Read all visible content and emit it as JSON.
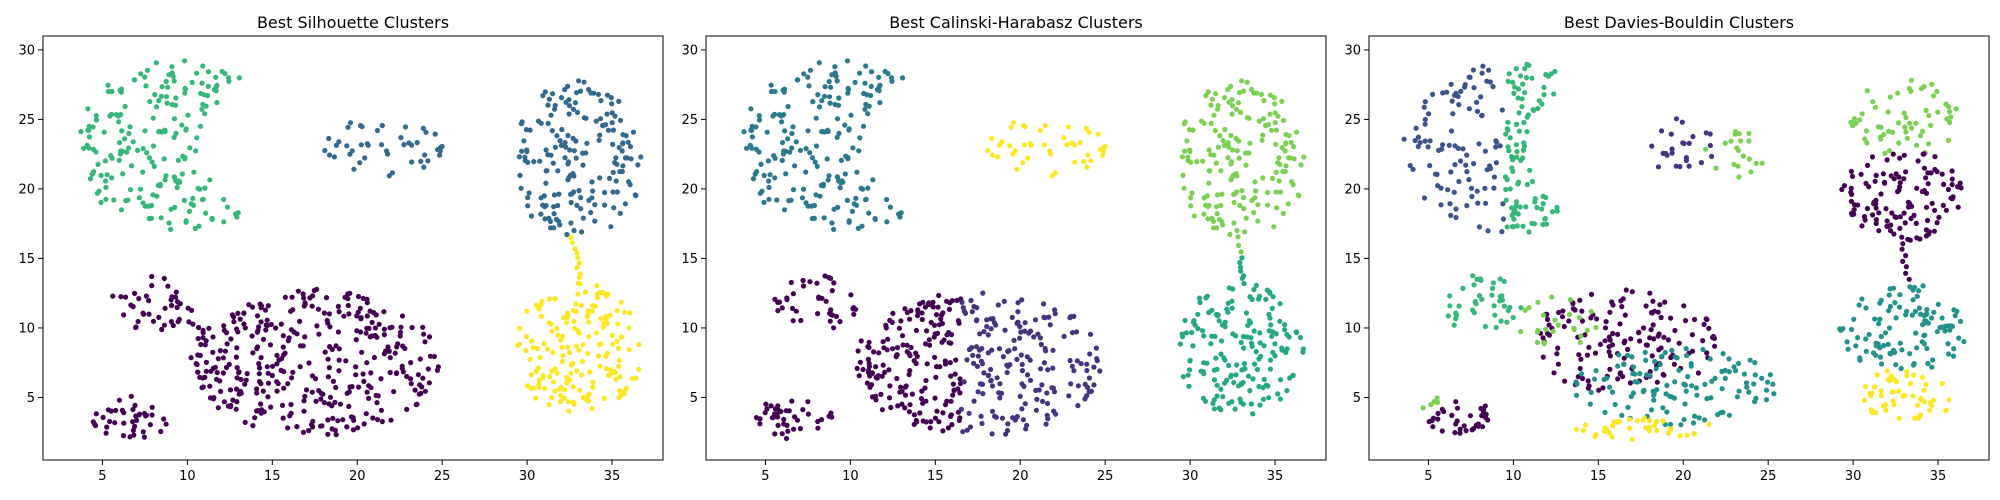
{
  "palette": {
    "c0": "#440154",
    "c1": "#3b528b",
    "c2": "#21918c",
    "c3": "#5ec962",
    "c4": "#fde725",
    "c_silh_blue": "#31688e",
    "c_silh_green": "#35b779",
    "c_ch_blue": "#46327e",
    "c_ch_teal": "#2a788e",
    "c_ch_green": "#22a884",
    "c_ch_lime": "#7ad151"
  },
  "chart_data": [
    {
      "type": "scatter",
      "title": "Best Silhouette Clusters",
      "xlim": [
        1.5,
        38.0
      ],
      "ylim": [
        0.5,
        31.0
      ],
      "xticks": [
        5,
        10,
        15,
        20,
        25,
        30,
        35
      ],
      "yticks": [
        5,
        10,
        15,
        20,
        25,
        30
      ],
      "grid": false,
      "clusters": [
        {
          "color": "#35b779",
          "shape": "crescent",
          "cx": 9.5,
          "cy": 23.0,
          "rx": 6.0,
          "ry": 6.3,
          "bite_cx": 17.0,
          "bite_cy": 23.0,
          "bite_r": 6.0,
          "n": 200
        },
        {
          "color": "#31688e",
          "shape": "ellipse",
          "cx": 21.5,
          "cy": 23.0,
          "rx": 3.5,
          "ry": 2.1,
          "n": 45
        },
        {
          "color": "#31688e",
          "shape": "ellipse",
          "cx": 33.0,
          "cy": 22.0,
          "rx": 3.8,
          "ry": 5.8,
          "n": 180
        },
        {
          "color": "#fde725",
          "shape": "ellipse",
          "cx": 33.0,
          "cy": 8.5,
          "rx": 3.8,
          "ry": 4.8,
          "n": 170
        },
        {
          "color": "#fde725",
          "shape": "bridge",
          "x1": 32.7,
          "y1": 16.5,
          "x2": 33.2,
          "y2": 13.2,
          "n": 10
        },
        {
          "color": "#440154",
          "shape": "ellipse",
          "cx": 17.5,
          "cy": 7.5,
          "rx": 7.3,
          "ry": 5.3,
          "n": 360
        },
        {
          "color": "#440154",
          "shape": "ellipse",
          "cx": 8.0,
          "cy": 11.8,
          "rx": 2.5,
          "ry": 2.0,
          "n": 40
        },
        {
          "color": "#440154",
          "shape": "ellipse",
          "cx": 6.7,
          "cy": 3.6,
          "rx": 2.3,
          "ry": 1.6,
          "n": 40
        },
        {
          "color": "#440154",
          "shape": "bridge",
          "x1": 10.0,
          "y1": 10.5,
          "x2": 11.0,
          "y2": 9.8,
          "n": 4
        }
      ]
    },
    {
      "type": "scatter",
      "title": "Best Calinski-Harabasz Clusters",
      "xlim": [
        1.5,
        38.0
      ],
      "ylim": [
        0.5,
        31.0
      ],
      "xticks": [
        5,
        10,
        15,
        20,
        25,
        30,
        35
      ],
      "yticks": [
        5,
        10,
        15,
        20,
        25,
        30
      ],
      "grid": false,
      "clusters": [
        {
          "color": "#2a788e",
          "shape": "crescent",
          "cx": 9.5,
          "cy": 23.0,
          "rx": 6.0,
          "ry": 6.3,
          "bite_cx": 17.0,
          "bite_cy": 23.0,
          "bite_r": 6.0,
          "n": 200
        },
        {
          "color": "#fde725",
          "shape": "ellipse",
          "cx": 21.5,
          "cy": 23.0,
          "rx": 3.5,
          "ry": 2.1,
          "n": 45
        },
        {
          "color": "#7ad151",
          "shape": "ellipse",
          "cx": 33.0,
          "cy": 22.0,
          "rx": 3.8,
          "ry": 5.8,
          "n": 180
        },
        {
          "color": "#7ad151",
          "shape": "bridge",
          "x1": 32.8,
          "y1": 16.5,
          "x2": 33.0,
          "y2": 15.5,
          "n": 3
        },
        {
          "color": "#22a884",
          "shape": "ellipse",
          "cx": 33.0,
          "cy": 8.5,
          "rx": 3.8,
          "ry": 4.8,
          "n": 170
        },
        {
          "color": "#22a884",
          "shape": "bridge",
          "x1": 33.0,
          "y1": 15.0,
          "x2": 33.2,
          "y2": 13.2,
          "n": 7
        },
        {
          "color": "#440154",
          "shape": "halfellipse",
          "cx": 17.5,
          "cy": 7.5,
          "rx": 7.3,
          "ry": 5.3,
          "split_x": 16.5,
          "side": "left",
          "n": 180
        },
        {
          "color": "#46327e",
          "shape": "halfellipse",
          "cx": 17.5,
          "cy": 7.5,
          "rx": 7.3,
          "ry": 5.3,
          "split_x": 16.5,
          "side": "right",
          "n": 180
        },
        {
          "color": "#440154",
          "shape": "ellipse",
          "cx": 8.0,
          "cy": 11.8,
          "rx": 2.5,
          "ry": 2.0,
          "n": 40
        },
        {
          "color": "#440154",
          "shape": "ellipse",
          "cx": 6.7,
          "cy": 3.6,
          "rx": 2.3,
          "ry": 1.6,
          "n": 40
        }
      ]
    },
    {
      "type": "scatter",
      "title": "Best Davies-Bouldin Clusters",
      "xlim": [
        1.5,
        38.0
      ],
      "ylim": [
        0.5,
        31.0
      ],
      "xticks": [
        5,
        10,
        15,
        20,
        25,
        30,
        35
      ],
      "yticks": [
        5,
        10,
        15,
        20,
        25,
        30
      ],
      "grid": false,
      "clusters": [
        {
          "color": "#3b528b",
          "shape": "crescent",
          "cx": 9.5,
          "cy": 23.0,
          "rx": 6.0,
          "ry": 6.3,
          "bite_cx": 17.0,
          "bite_cy": 23.0,
          "bite_r": 6.0,
          "xmax": 9.5,
          "n": 100
        },
        {
          "color": "#35b779",
          "shape": "crescent",
          "cx": 9.5,
          "cy": 23.0,
          "rx": 6.0,
          "ry": 6.3,
          "bite_cx": 17.0,
          "bite_cy": 23.0,
          "bite_r": 6.0,
          "xmin": 9.5,
          "n": 100
        },
        {
          "color": "#46327e",
          "shape": "ellipse",
          "cx": 20.0,
          "cy": 23.0,
          "rx": 2.0,
          "ry": 2.1,
          "n": 25
        },
        {
          "color": "#7ad151",
          "shape": "ellipse",
          "cx": 23.0,
          "cy": 22.5,
          "rx": 1.8,
          "ry": 1.8,
          "n": 20
        },
        {
          "color": "#7ad151",
          "shape": "ellipse",
          "cx": 33.0,
          "cy": 25.0,
          "rx": 3.2,
          "ry": 3.0,
          "n": 60
        },
        {
          "color": "#440154",
          "shape": "ellipse",
          "cx": 33.0,
          "cy": 19.5,
          "rx": 3.8,
          "ry": 3.3,
          "n": 120
        },
        {
          "color": "#440154",
          "shape": "bridge",
          "x1": 32.8,
          "y1": 16.5,
          "x2": 33.2,
          "y2": 13.5,
          "n": 8
        },
        {
          "color": "#21918c",
          "shape": "ellipse",
          "cx": 33.0,
          "cy": 10.0,
          "rx": 3.8,
          "ry": 3.2,
          "n": 110
        },
        {
          "color": "#fde725",
          "shape": "ellipse",
          "cx": 33.0,
          "cy": 5.2,
          "rx": 3.3,
          "ry": 1.8,
          "n": 55
        },
        {
          "color": "#440154",
          "shape": "ellipse",
          "cx": 16.5,
          "cy": 9.0,
          "rx": 5.5,
          "ry": 3.8,
          "n": 150
        },
        {
          "color": "#7ad151",
          "shape": "ellipse",
          "cx": 12.5,
          "cy": 10.5,
          "rx": 2.5,
          "ry": 2.0,
          "n": 25
        },
        {
          "color": "#21918c",
          "shape": "ellipse",
          "cx": 19.5,
          "cy": 5.8,
          "rx": 6.0,
          "ry": 2.8,
          "n": 120
        },
        {
          "color": "#fde725",
          "shape": "ellipse",
          "cx": 18.0,
          "cy": 2.8,
          "rx": 4.5,
          "ry": 0.9,
          "n": 35
        },
        {
          "color": "#35b779",
          "shape": "ellipse",
          "cx": 8.0,
          "cy": 11.8,
          "rx": 2.5,
          "ry": 2.0,
          "n": 40
        },
        {
          "color": "#440154",
          "shape": "ellipse",
          "cx": 6.9,
          "cy": 3.5,
          "rx": 2.0,
          "ry": 1.4,
          "n": 34
        },
        {
          "color": "#7ad151",
          "shape": "ellipse",
          "cx": 5.2,
          "cy": 4.6,
          "rx": 0.7,
          "ry": 0.6,
          "n": 6
        }
      ]
    }
  ]
}
